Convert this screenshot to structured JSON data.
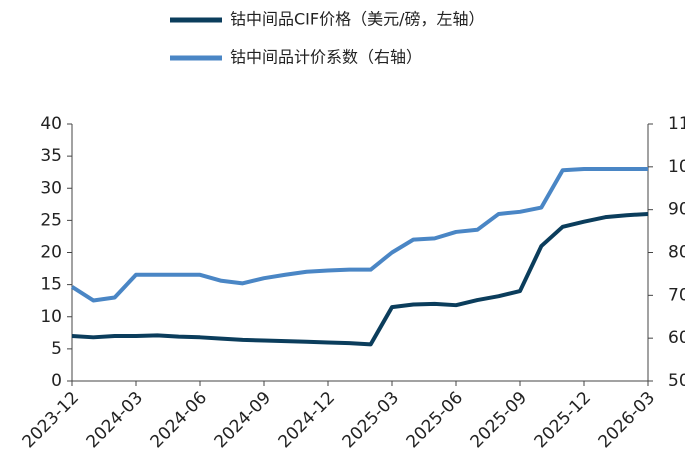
{
  "chart_data": {
    "type": "line",
    "categories": [
      "2023-12",
      null,
      null,
      "2024-03",
      null,
      null,
      "2024-06",
      null,
      null,
      "2024-09",
      null,
      null,
      "2024-12",
      null,
      null,
      "2025-03",
      null,
      null,
      "2025-06",
      null,
      null,
      "2025-09",
      null,
      null,
      "2025-12",
      null,
      null,
      "2026-03"
    ],
    "series": [
      {
        "name": "钴中间品CIF价格（美元/磅，左轴）",
        "color": "#0b3d5c",
        "values": [
          7.0,
          6.8,
          7.0,
          7.0,
          7.1,
          6.9,
          6.8,
          6.6,
          6.4,
          6.3,
          6.2,
          6.1,
          6.0,
          5.9,
          5.7,
          11.5,
          11.9,
          12.0,
          11.8,
          12.6,
          13.2,
          14.0,
          21.0,
          24.0,
          24.8,
          25.5,
          25.8,
          26.0
        ]
      },
      {
        "name": "钴中间品计价系数（右轴）",
        "color": "#4a86c5",
        "axis": "y2",
        "values": [
          72,
          68.8,
          69.5,
          74.8,
          74.8,
          74.8,
          74.8,
          73.4,
          72.8,
          74,
          74.8,
          75.5,
          75.8,
          76,
          76,
          80,
          83,
          83.3,
          84.8,
          85.3,
          89,
          89.5,
          90.5,
          99.2,
          99.5,
          99.5,
          99.5,
          99.5
        ]
      }
    ],
    "ylim": [
      0,
      40
    ],
    "yticks": [
      0,
      5,
      10,
      15,
      20,
      25,
      30,
      35,
      40
    ],
    "y2lim": [
      50,
      110
    ],
    "y2ticks": [
      50,
      60,
      70,
      80,
      90,
      100,
      110
    ]
  }
}
